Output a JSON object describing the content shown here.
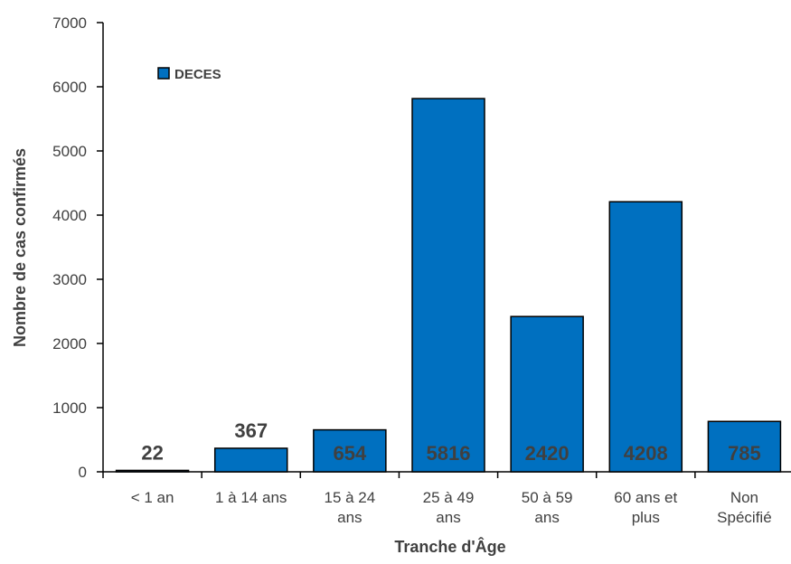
{
  "chart_data": {
    "type": "bar",
    "categories": [
      [
        "< 1 an"
      ],
      [
        "1 à 14 ans"
      ],
      [
        "15 à 24",
        "ans"
      ],
      [
        "25 à 49",
        "ans"
      ],
      [
        "50 à 59",
        "ans"
      ],
      [
        "60 ans et",
        "plus"
      ],
      [
        "Non",
        "Spécifié"
      ]
    ],
    "series": [
      {
        "name": "DECES",
        "values": [
          22,
          367,
          654,
          5816,
          2420,
          4208,
          785
        ]
      }
    ],
    "data_labels": [
      "22",
      "367",
      "654",
      "5816",
      "2420",
      "4208",
      "785"
    ],
    "xlabel": "Tranche d'Âge",
    "ylabel": "Nombre de cas confirmés",
    "ylim": [
      0,
      7000
    ],
    "yticks": [
      0,
      1000,
      2000,
      3000,
      4000,
      5000,
      6000,
      7000
    ],
    "grid": false,
    "legend_position": "top-left",
    "colors": {
      "bar": "#0070C0",
      "bar_border": "#000000",
      "text": "#404040",
      "axis": "#000000"
    }
  }
}
